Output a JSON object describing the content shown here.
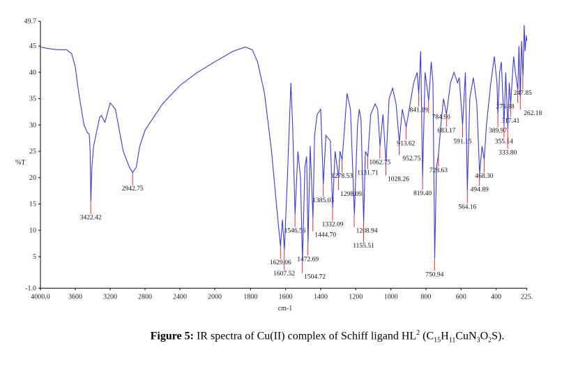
{
  "chart_data": {
    "type": "line",
    "title": "",
    "xlabel": "cm-1",
    "ylabel": "%T",
    "xlim": [
      4000,
      225
    ],
    "ylim": [
      -1.0,
      49.7
    ],
    "x_scale_note": "scale expands below 2000",
    "x_ticks": [
      "4000.0",
      "3600",
      "3200",
      "2800",
      "2400",
      "2000",
      "1800",
      "1600",
      "1400",
      "1200",
      "1000",
      "800",
      "600",
      "400",
      "225."
    ],
    "x_tick_values": [
      4000,
      3600,
      3200,
      2800,
      2400,
      2000,
      1800,
      1600,
      1400,
      1200,
      1000,
      800,
      600,
      400,
      225
    ],
    "y_ticks": [
      "49.7",
      "45",
      "40",
      "35",
      "30",
      "25",
      "20",
      "15",
      "10",
      "5",
      "-1.0"
    ],
    "y_tick_values": [
      49.7,
      45,
      40,
      35,
      30,
      25,
      20,
      15,
      10,
      5,
      -1.0
    ],
    "grid": false,
    "line_color": "#3a3ad8",
    "marker_color": "#e03030",
    "series": [
      {
        "points": [
          [
            4000,
            44.8
          ],
          [
            3900,
            44.5
          ],
          [
            3800,
            44.3
          ],
          [
            3700,
            44.3
          ],
          [
            3640,
            43.5
          ],
          [
            3600,
            41
          ],
          [
            3560,
            36
          ],
          [
            3500,
            30
          ],
          [
            3460,
            28.5
          ],
          [
            3440,
            28.3
          ],
          [
            3430,
            25
          ],
          [
            3422,
            15.5
          ],
          [
            3410,
            22
          ],
          [
            3390,
            26
          ],
          [
            3320,
            31.5
          ],
          [
            3300,
            31.8
          ],
          [
            3260,
            30.5
          ],
          [
            3200,
            34.2
          ],
          [
            3140,
            33
          ],
          [
            3050,
            25
          ],
          [
            2980,
            22
          ],
          [
            2942,
            21
          ],
          [
            2900,
            22
          ],
          [
            2860,
            26
          ],
          [
            2800,
            29
          ],
          [
            2720,
            31
          ],
          [
            2600,
            34
          ],
          [
            2400,
            37.5
          ],
          [
            2200,
            40
          ],
          [
            2000,
            42
          ],
          [
            1900,
            44
          ],
          [
            1830,
            44.8
          ],
          [
            1790,
            44.3
          ],
          [
            1760,
            42
          ],
          [
            1720,
            36
          ],
          [
            1680,
            25
          ],
          [
            1650,
            14
          ],
          [
            1629,
            7
          ],
          [
            1618,
            12
          ],
          [
            1607,
            6.3
          ],
          [
            1590,
            20
          ],
          [
            1570,
            38
          ],
          [
            1560,
            30
          ],
          [
            1546,
            13
          ],
          [
            1530,
            25
          ],
          [
            1515,
            20
          ],
          [
            1504,
            4.3
          ],
          [
            1490,
            22
          ],
          [
            1480,
            24
          ],
          [
            1472,
            7.6
          ],
          [
            1460,
            26
          ],
          [
            1444,
            12.2
          ],
          [
            1435,
            28
          ],
          [
            1420,
            32
          ],
          [
            1400,
            33
          ],
          [
            1385,
            18.8
          ],
          [
            1370,
            28
          ],
          [
            1345,
            27
          ],
          [
            1332,
            14.2
          ],
          [
            1318,
            25
          ],
          [
            1298,
            20
          ],
          [
            1290,
            25
          ],
          [
            1278,
            23.4
          ],
          [
            1265,
            29
          ],
          [
            1250,
            36
          ],
          [
            1230,
            33
          ],
          [
            1208,
            13
          ],
          [
            1190,
            30
          ],
          [
            1180,
            33
          ],
          [
            1170,
            31
          ],
          [
            1155,
            11.6
          ],
          [
            1145,
            25
          ],
          [
            1131,
            24
          ],
          [
            1115,
            32
          ],
          [
            1090,
            34
          ],
          [
            1075,
            33
          ],
          [
            1062,
            26
          ],
          [
            1045,
            32
          ],
          [
            1028,
            22.8
          ],
          [
            1010,
            35
          ],
          [
            990,
            37
          ],
          [
            970,
            34
          ],
          [
            952,
            26.7
          ],
          [
            935,
            33
          ],
          [
            913,
            29.6
          ],
          [
            895,
            33
          ],
          [
            870,
            38
          ],
          [
            850,
            40
          ],
          [
            841,
            35.9
          ],
          [
            830,
            44
          ],
          [
            819,
            20.1
          ],
          [
            805,
            40
          ],
          [
            784,
            34.6
          ],
          [
            770,
            42
          ],
          [
            760,
            38
          ],
          [
            750,
            4.7
          ],
          [
            740,
            22
          ],
          [
            728,
            24.5
          ],
          [
            715,
            30
          ],
          [
            700,
            35
          ],
          [
            683,
            32
          ],
          [
            660,
            38
          ],
          [
            640,
            40
          ],
          [
            620,
            38
          ],
          [
            610,
            39
          ],
          [
            591,
            30
          ],
          [
            575,
            40
          ],
          [
            564,
            17.5
          ],
          [
            550,
            35
          ],
          [
            530,
            39
          ],
          [
            510,
            34
          ],
          [
            494,
            20.8
          ],
          [
            480,
            26
          ],
          [
            468,
            23.4
          ],
          [
            455,
            30
          ],
          [
            430,
            38
          ],
          [
            410,
            43
          ],
          [
            395,
            38
          ],
          [
            390,
            32
          ],
          [
            380,
            40
          ],
          [
            370,
            42
          ],
          [
            355,
            30
          ],
          [
            345,
            40
          ],
          [
            333,
            29.3
          ],
          [
            325,
            38
          ],
          [
            317,
            33.9
          ],
          [
            300,
            43
          ],
          [
            290,
            40
          ],
          [
            276,
            36.6
          ],
          [
            270,
            45
          ],
          [
            262,
            35.3
          ],
          [
            255,
            46
          ],
          [
            247,
            39.2
          ],
          [
            240,
            49
          ],
          [
            235,
            44
          ],
          [
            228,
            47
          ],
          [
            225,
            46
          ]
        ]
      }
    ],
    "peak_labels": [
      {
        "x": 3422.42,
        "y": 15.5,
        "label": "3422.42"
      },
      {
        "x": 2942.75,
        "y": 21,
        "label": "2942.75"
      },
      {
        "x": 1629.06,
        "y": 7,
        "label": "1629.06"
      },
      {
        "x": 1607.52,
        "y": 6.3,
        "label": "1607.52"
      },
      {
        "x": 1546.56,
        "y": 13,
        "label": "1546.56"
      },
      {
        "x": 1504.72,
        "y": 4.3,
        "label": "1504.72"
      },
      {
        "x": 1472.69,
        "y": 7.6,
        "label": "1472.69"
      },
      {
        "x": 1444.7,
        "y": 12.2,
        "label": "1444.70"
      },
      {
        "x": 1385.03,
        "y": 18.8,
        "label": "1385.03"
      },
      {
        "x": 1332.09,
        "y": 14.2,
        "label": "1332.09"
      },
      {
        "x": 1298.09,
        "y": 20,
        "label": "1298.09"
      },
      {
        "x": 1278.53,
        "y": 23.4,
        "label": "1278.53"
      },
      {
        "x": 1208.94,
        "y": 13,
        "label": "1208.94"
      },
      {
        "x": 1155.51,
        "y": 11.6,
        "label": "1155.51"
      },
      {
        "x": 1131.71,
        "y": 24,
        "label": "1131.71"
      },
      {
        "x": 1062.75,
        "y": 26,
        "label": "1062.75"
      },
      {
        "x": 1028.26,
        "y": 22.8,
        "label": "1028.26"
      },
      {
        "x": 952.75,
        "y": 26.7,
        "label": "952.75"
      },
      {
        "x": 913.62,
        "y": 29.6,
        "label": "913.62"
      },
      {
        "x": 841.19,
        "y": 35.9,
        "label": "841.19"
      },
      {
        "x": 819.4,
        "y": 20.1,
        "label": "819.40"
      },
      {
        "x": 784.9,
        "y": 34.6,
        "label": "784.90"
      },
      {
        "x": 750.94,
        "y": 4.7,
        "label": "750.94"
      },
      {
        "x": 728.63,
        "y": 24.5,
        "label": "728.63"
      },
      {
        "x": 683.17,
        "y": 32,
        "label": "683.17"
      },
      {
        "x": 591.15,
        "y": 30,
        "label": "591.15"
      },
      {
        "x": 564.16,
        "y": 17.5,
        "label": "564.16"
      },
      {
        "x": 494.89,
        "y": 20.8,
        "label": "494.89"
      },
      {
        "x": 468.3,
        "y": 23.4,
        "label": "468.30"
      },
      {
        "x": 389.97,
        "y": 32,
        "label": "389.97"
      },
      {
        "x": 355.14,
        "y": 30,
        "label": "355.14"
      },
      {
        "x": 333.8,
        "y": 29.3,
        "label": "333.80"
      },
      {
        "x": 317.41,
        "y": 33.9,
        "label": "317.41"
      },
      {
        "x": 262.18,
        "y": 35.3,
        "label": "262.18"
      },
      {
        "x": 276.88,
        "y": 36.6,
        "label": "276.88"
      },
      {
        "x": 247.85,
        "y": 39.2,
        "label": "247.85"
      }
    ]
  },
  "caption": {
    "lead": "Figure 5:",
    "text": " IR spectra of Cu(II) complex of Schiff ligand HL",
    "sup": "2",
    "formula_open": " (C",
    "s1": "15",
    "h": "H",
    "s2": "11",
    "cun": "CuN",
    "s3": "3",
    "o": "O",
    "s4": "2",
    "tail": "S)."
  }
}
